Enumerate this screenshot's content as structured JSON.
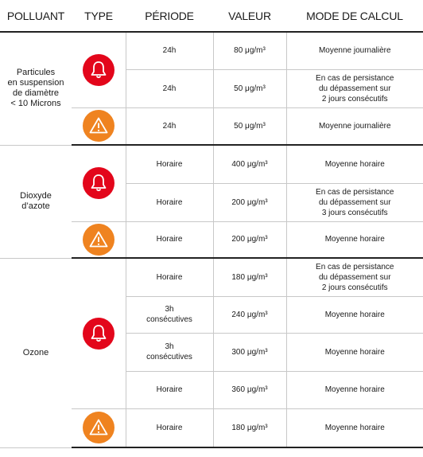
{
  "headers": {
    "pollutant": "POLLUANT",
    "type": "TYPE",
    "period": "PÉRIODE",
    "value": "VALEUR",
    "method": "MODE DE CALCUL"
  },
  "pollutants": [
    {
      "name": [
        "Particules",
        "en suspension",
        "de diamètre",
        "< 10 Microns"
      ],
      "rows": [
        {
          "type": "alert",
          "period": [
            "24h"
          ],
          "value": "80 μg/m³",
          "method": [
            "Moyenne journalière"
          ]
        },
        {
          "type": "alert",
          "period": [
            "24h"
          ],
          "value": "50 μg/m³",
          "method": [
            "En cas de persistance",
            "du dépassement sur",
            "2 jours consécutifs"
          ]
        },
        {
          "type": "info",
          "period": [
            "24h"
          ],
          "value": "50 μg/m³",
          "method": [
            "Moyenne journalière"
          ]
        }
      ]
    },
    {
      "name": [
        "Dioxyde",
        "d’azote"
      ],
      "rows": [
        {
          "type": "alert",
          "period": [
            "Horaire"
          ],
          "value": "400 μg/m³",
          "method": [
            "Moyenne horaire"
          ]
        },
        {
          "type": "alert",
          "period": [
            "Horaire"
          ],
          "value": "200 μg/m³",
          "method": [
            "En cas de persistance",
            "du dépassement sur",
            "3 jours consécutifs"
          ]
        },
        {
          "type": "info",
          "period": [
            "Horaire"
          ],
          "value": "200 μg/m³",
          "method": [
            "Moyenne horaire"
          ]
        }
      ]
    },
    {
      "name": [
        "Ozone"
      ],
      "rows": [
        {
          "type": "alert",
          "period": [
            "Horaire"
          ],
          "value": "180 μg/m³",
          "method": [
            "En cas de persistance",
            "du dépassement sur",
            "2 jours consécutifs"
          ]
        },
        {
          "type": "alert",
          "period": [
            "3h",
            "consécutives"
          ],
          "value": "240 μg/m³",
          "method": [
            "Moyenne horaire"
          ]
        },
        {
          "type": "alert",
          "period": [
            "3h",
            "consécutives"
          ],
          "value": "300 μg/m³",
          "method": [
            "Moyenne horaire"
          ]
        },
        {
          "type": "alert",
          "period": [
            "Horaire"
          ],
          "value": "360 μg/m³",
          "method": [
            "Moyenne horaire"
          ]
        },
        {
          "type": "info",
          "period": [
            "Horaire"
          ],
          "value": "180 μg/m³",
          "method": [
            "Moyenne horaire"
          ]
        }
      ]
    }
  ],
  "colors": {
    "alert": "#e3061b",
    "info": "#ef8320"
  },
  "icons": {
    "alert": "bell-icon",
    "info": "warning-triangle-icon"
  }
}
